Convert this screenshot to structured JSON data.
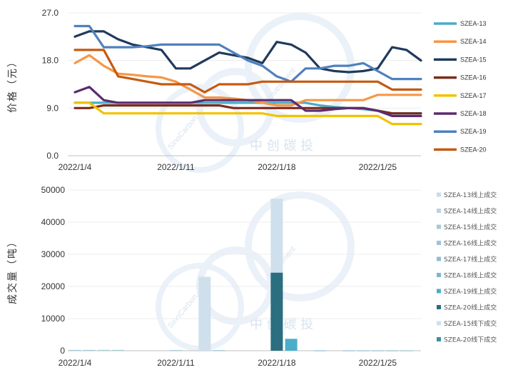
{
  "chart_data": [
    {
      "type": "line",
      "ylabel": "价格（元）",
      "ylim": [
        0,
        27
      ],
      "yticks": [
        "27.0",
        "18.0",
        "9.0",
        "0.0"
      ],
      "ytick_values": [
        27,
        18,
        9,
        0
      ],
      "x_tick_labels": [
        "2022/1/4",
        "2022/1/11",
        "2022/1/18",
        "2022/1/25"
      ],
      "x_tick_index": [
        0,
        7,
        14,
        21
      ],
      "legend_position": "right",
      "series": [
        {
          "name": "SZEA-13",
          "color": "#4bacc6",
          "values": [
            10.0,
            10.0,
            10.0,
            10.0,
            10.0,
            10.0,
            10.0,
            10.0,
            10.0,
            10.0,
            10.0,
            10.0,
            10.0,
            10.0,
            10.0,
            10.0,
            10.0,
            9.5,
            9.2,
            9.0,
            8.8,
            8.5,
            8.0,
            8.0,
            8.0
          ]
        },
        {
          "name": "SZEA-14",
          "color": "#f79646",
          "values": [
            17.5,
            19.0,
            17.0,
            15.5,
            15.3,
            15.0,
            14.8,
            14.0,
            12.5,
            11.0,
            11.0,
            10.8,
            10.5,
            10.0,
            9.5,
            9.5,
            10.5,
            10.5,
            10.5,
            10.5,
            10.5,
            11.5,
            11.5,
            11.5,
            11.5
          ]
        },
        {
          "name": "SZEA-15",
          "color": "#1f3a5c",
          "values": [
            22.5,
            23.5,
            23.5,
            22.0,
            21.0,
            20.5,
            20.0,
            16.5,
            16.5,
            18.0,
            19.5,
            19.0,
            18.5,
            17.5,
            21.5,
            21.0,
            19.5,
            16.5,
            16.0,
            15.8,
            16.0,
            16.5,
            20.5,
            20.0,
            18.0
          ]
        },
        {
          "name": "SZEA-16",
          "color": "#7b2c1e",
          "values": [
            9.0,
            9.0,
            9.5,
            9.5,
            9.5,
            9.5,
            9.5,
            9.5,
            9.5,
            9.5,
            9.5,
            9.0,
            9.0,
            9.0,
            9.0,
            9.0,
            9.0,
            9.0,
            9.0,
            9.0,
            9.0,
            8.5,
            8.0,
            8.0,
            8.0
          ]
        },
        {
          "name": "SZEA-17",
          "color": "#f2c200",
          "values": [
            10.0,
            10.0,
            8.0,
            8.0,
            8.0,
            8.0,
            8.0,
            8.0,
            8.0,
            8.0,
            8.0,
            8.0,
            8.0,
            8.0,
            7.5,
            7.5,
            7.5,
            7.5,
            7.5,
            7.5,
            7.5,
            7.5,
            6.0,
            6.0,
            6.0
          ]
        },
        {
          "name": "SZEA-18",
          "color": "#5b2c6f",
          "values": [
            12.0,
            13.0,
            10.5,
            10.0,
            10.0,
            10.0,
            10.0,
            10.0,
            10.0,
            10.5,
            10.5,
            10.5,
            10.5,
            10.5,
            10.5,
            10.5,
            8.5,
            8.5,
            8.8,
            9.0,
            9.0,
            8.5,
            7.5,
            7.5,
            7.5
          ]
        },
        {
          "name": "SZEA-19",
          "color": "#4f81bd",
          "values": [
            24.5,
            24.5,
            20.5,
            20.5,
            20.5,
            20.7,
            21.0,
            21.0,
            21.0,
            21.0,
            21.0,
            19.5,
            18.0,
            17.0,
            15.0,
            14.0,
            16.5,
            16.5,
            17.0,
            17.0,
            17.5,
            16.0,
            14.5,
            14.5,
            14.5
          ]
        },
        {
          "name": "SZEA-20",
          "color": "#c55a11",
          "values": [
            20.0,
            20.0,
            20.0,
            15.0,
            14.5,
            14.0,
            13.5,
            13.5,
            13.5,
            12.0,
            13.5,
            13.5,
            13.5,
            14.0,
            14.0,
            14.0,
            14.0,
            14.0,
            14.0,
            14.0,
            14.0,
            14.0,
            12.5,
            12.5,
            12.5
          ]
        }
      ]
    },
    {
      "type": "bar",
      "stacked": true,
      "ylabel": "成交量（吨）",
      "ylim": [
        0,
        50000
      ],
      "yticks": [
        "50000",
        "40000",
        "30000",
        "20000",
        "10000",
        "0"
      ],
      "ytick_values": [
        50000,
        40000,
        30000,
        20000,
        10000,
        0
      ],
      "x_tick_labels": [
        "2022/1/4",
        "2022/1/11",
        "2022/1/18",
        "2022/1/25"
      ],
      "x_tick_index": [
        0,
        7,
        14,
        21
      ],
      "legend_position": "right",
      "series": [
        {
          "name": "SZEA-13线上成交",
          "color": "#c9dcea",
          "values": {}
        },
        {
          "name": "SZEA-14线上成交",
          "color": "#b8d3e6",
          "values": {}
        },
        {
          "name": "SZEA-15线上成交",
          "color": "#a7cad6",
          "values": {
            "0": 250,
            "1": 250,
            "2": 250,
            "3": 250,
            "7": 200,
            "10": 200,
            "17": 150,
            "19": 150,
            "20": 150,
            "21": 150,
            "22": 150,
            "23": 150
          }
        },
        {
          "name": "SZEA-16线上成交",
          "color": "#9dc3dd",
          "values": {}
        },
        {
          "name": "SZEA-17线上成交",
          "color": "#8cbfd3",
          "values": {}
        },
        {
          "name": "SZEA-18线上成交",
          "color": "#7bb7cc",
          "values": {}
        },
        {
          "name": "SZEA-19线上成交",
          "color": "#4aaecb",
          "values": {
            "15": 3700
          }
        },
        {
          "name": "SZEA-20线上成交",
          "color": "#2a6e7f",
          "values": {
            "14": 24300
          }
        },
        {
          "name": "SZEA-15线下成交",
          "color": "#cfe0ec",
          "values": {
            "9": 23000,
            "14": 23000
          }
        },
        {
          "name": "SZEA-20线下成交",
          "color": "#3a8fa3",
          "values": {}
        }
      ]
    }
  ]
}
